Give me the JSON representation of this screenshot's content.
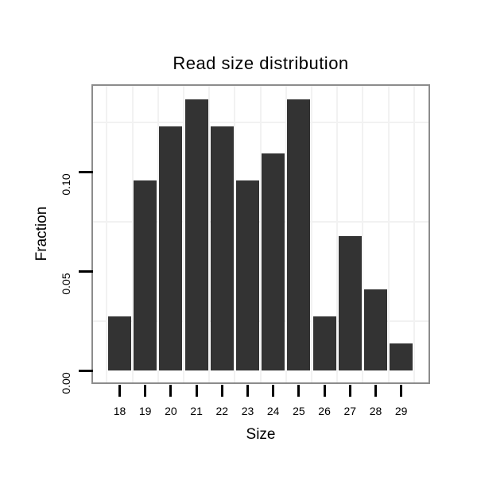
{
  "figure": {
    "background_color": "#ffffff",
    "text_color": "#000000"
  },
  "chart_data": {
    "type": "bar",
    "title": "Read size distribution",
    "xlabel": "Size",
    "ylabel": "Fraction",
    "categories": [
      18,
      19,
      20,
      21,
      22,
      23,
      24,
      25,
      26,
      27,
      28,
      29
    ],
    "values": [
      0.0272,
      0.0956,
      0.1228,
      0.1364,
      0.1228,
      0.0956,
      0.1092,
      0.1364,
      0.0272,
      0.0676,
      0.0408,
      0.0136
    ],
    "x_tick_labels": [
      "18",
      "19",
      "20",
      "21",
      "22",
      "23",
      "24",
      "25",
      "26",
      "27",
      "28",
      "29"
    ],
    "y_ticks": {
      "values": [
        0,
        0.05,
        0.1
      ],
      "labels": [
        "0.00",
        "0.05",
        "0.10"
      ]
    },
    "ylim": [
      0,
      0.1432
    ],
    "xlim": [
      16.96,
      30.02
    ],
    "bar_width_fraction": 0.9,
    "grid": "minor-only",
    "minor_y_gridlines": [
      0.025,
      0.075,
      0.125
    ],
    "minor_x_gridlines": [
      17.5,
      18.5,
      19.5,
      20.5,
      21.5,
      22.5,
      23.5,
      24.5,
      25.5,
      26.5,
      27.5,
      28.5,
      29.5
    ],
    "legend": "none",
    "colors": {
      "bar_fill": "#333333",
      "panel_border": "#8c8c8c",
      "panel_background": "#ffffff",
      "minor_gridline": "#f2f2f2",
      "tick": "#000000",
      "text": "#000000"
    }
  }
}
